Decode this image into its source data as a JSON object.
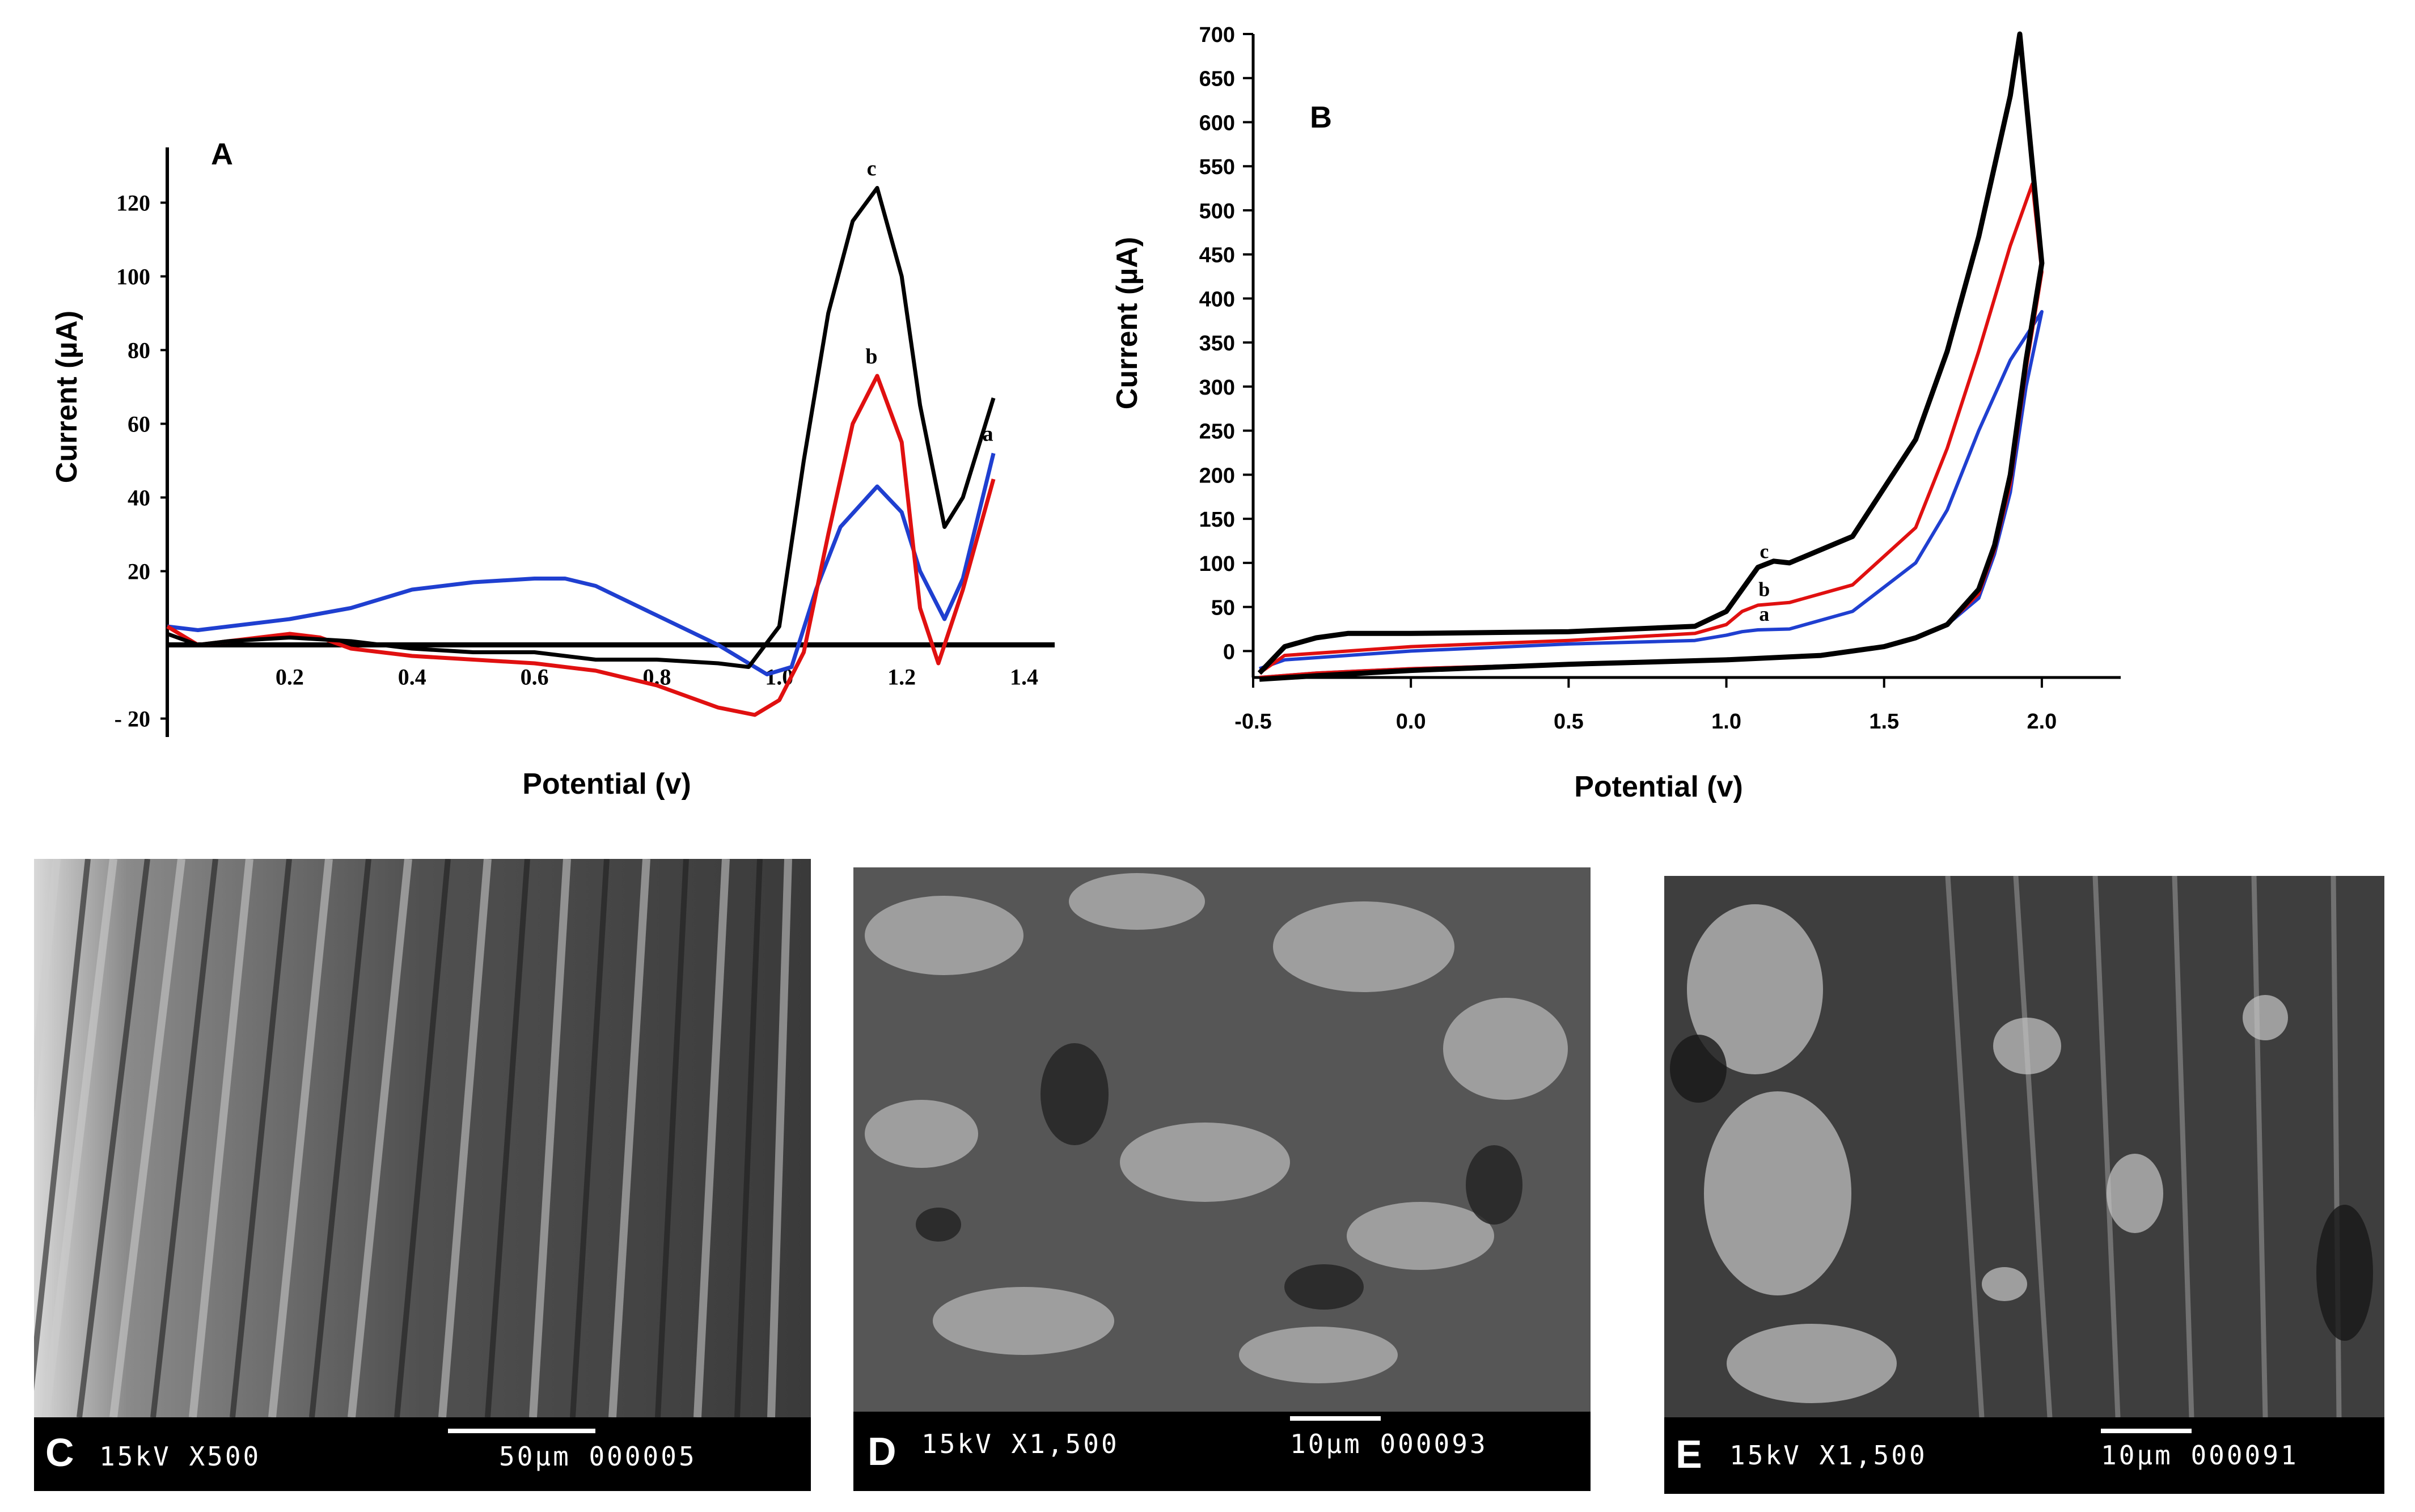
{
  "chart_data": [
    {
      "type": "line",
      "panel_label": "A",
      "xlabel": "Potential (v)",
      "ylabel": "Current (µA)",
      "xlim": [
        0,
        1.45
      ],
      "ylim": [
        -25,
        135
      ],
      "x_ticks": [
        "0.2",
        "0.4",
        "0.6",
        "0.8",
        "1.0",
        "1.2",
        "1.4"
      ],
      "y_ticks": [
        "120",
        "100",
        "80",
        "60",
        "40",
        "20",
        "- 20"
      ],
      "series": [
        {
          "name": "a",
          "color": "#1f3fd0",
          "x": [
            0.0,
            0.05,
            0.1,
            0.2,
            0.3,
            0.4,
            0.5,
            0.6,
            0.65,
            0.7,
            0.8,
            0.9,
            0.98,
            1.02,
            1.06,
            1.1,
            1.16,
            1.2,
            1.23,
            1.27,
            1.3,
            1.35
          ],
          "y": [
            5,
            4,
            5,
            7,
            10,
            15,
            17,
            18,
            18,
            16,
            8,
            0,
            -8,
            -6,
            15,
            32,
            43,
            36,
            20,
            7,
            18,
            52
          ]
        },
        {
          "name": "b",
          "color": "#e01010",
          "x": [
            0.0,
            0.05,
            0.1,
            0.2,
            0.25,
            0.3,
            0.4,
            0.5,
            0.6,
            0.7,
            0.8,
            0.9,
            0.96,
            1.0,
            1.04,
            1.08,
            1.12,
            1.16,
            1.2,
            1.23,
            1.26,
            1.3,
            1.35
          ],
          "y": [
            5,
            0,
            1,
            3,
            2,
            -1,
            -3,
            -4,
            -5,
            -7,
            -11,
            -17,
            -19,
            -15,
            -2,
            30,
            60,
            73,
            55,
            10,
            -5,
            15,
            45
          ]
        },
        {
          "name": "c",
          "color": "#000000",
          "x": [
            0.0,
            0.05,
            0.1,
            0.2,
            0.3,
            0.4,
            0.5,
            0.6,
            0.7,
            0.8,
            0.9,
            0.95,
            1.0,
            1.04,
            1.08,
            1.12,
            1.16,
            1.2,
            1.23,
            1.27,
            1.3,
            1.35
          ],
          "y": [
            3,
            0,
            1,
            2,
            1,
            -1,
            -2,
            -2,
            -4,
            -4,
            -5,
            -6,
            5,
            50,
            90,
            115,
            124,
            100,
            65,
            32,
            40,
            67
          ]
        }
      ]
    },
    {
      "type": "line",
      "panel_label": "B",
      "xlabel": "Potential (v)",
      "ylabel": "Current (µA)",
      "xlim": [
        -0.5,
        2.25
      ],
      "ylim": [
        -30,
        700
      ],
      "x_ticks": [
        "-0.5",
        "0.0",
        "0.5",
        "1.0",
        "1.5",
        "2.0"
      ],
      "y_ticks": [
        "700",
        "650",
        "600",
        "550",
        "500",
        "450",
        "400",
        "350",
        "300",
        "250",
        "200",
        "150",
        "100",
        "50",
        "0"
      ],
      "series": [
        {
          "name": "a",
          "color": "#1f3fd0",
          "forward": {
            "x": [
              -0.48,
              -0.4,
              -0.2,
              0.0,
              0.5,
              0.9,
              1.0,
              1.05,
              1.1,
              1.2,
              1.4,
              1.6,
              1.7,
              1.8,
              1.9,
              2.0
            ],
            "y": [
              -20,
              -10,
              -5,
              0,
              8,
              12,
              18,
              22,
              24,
              25,
              45,
              100,
              160,
              250,
              330,
              385
            ]
          },
          "reverse": {
            "x": [
              2.0,
              1.95,
              1.9,
              1.85,
              1.8,
              1.7,
              1.6,
              1.5,
              1.3,
              1.0,
              0.5,
              0.0,
              -0.3,
              -0.48
            ],
            "y": [
              385,
              300,
              180,
              110,
              60,
              30,
              15,
              5,
              -5,
              -10,
              -15,
              -20,
              -25,
              -30
            ]
          }
        },
        {
          "name": "b",
          "color": "#e01010",
          "forward": {
            "x": [
              -0.48,
              -0.4,
              -0.2,
              0.0,
              0.5,
              0.9,
              1.0,
              1.05,
              1.1,
              1.2,
              1.4,
              1.6,
              1.7,
              1.8,
              1.9,
              1.97,
              2.0
            ],
            "y": [
              -25,
              -5,
              0,
              5,
              12,
              20,
              30,
              45,
              52,
              55,
              75,
              140,
              230,
              340,
              460,
              530,
              430
            ]
          },
          "reverse": {
            "x": [
              2.0,
              1.95,
              1.9,
              1.85,
              1.8,
              1.7,
              1.6,
              1.5,
              1.3,
              1.0,
              0.5,
              0.0,
              -0.3,
              -0.48
            ],
            "y": [
              430,
              320,
              190,
              115,
              65,
              30,
              15,
              5,
              -5,
              -10,
              -15,
              -20,
              -25,
              -30
            ]
          }
        },
        {
          "name": "c",
          "color": "#000000",
          "forward": {
            "x": [
              -0.48,
              -0.4,
              -0.3,
              -0.2,
              0.0,
              0.5,
              0.9,
              1.0,
              1.05,
              1.1,
              1.15,
              1.2,
              1.4,
              1.6,
              1.7,
              1.8,
              1.9,
              1.93,
              2.0
            ],
            "y": [
              -25,
              5,
              15,
              20,
              20,
              22,
              28,
              45,
              70,
              95,
              102,
              100,
              130,
              240,
              340,
              470,
              630,
              700,
              440
            ]
          },
          "reverse": {
            "x": [
              2.0,
              1.95,
              1.9,
              1.85,
              1.8,
              1.7,
              1.6,
              1.5,
              1.3,
              1.0,
              0.5,
              0.0,
              -0.3,
              -0.48
            ],
            "y": [
              440,
              330,
              200,
              120,
              70,
              30,
              15,
              5,
              -5,
              -10,
              -15,
              -22,
              -28,
              -32
            ]
          }
        }
      ]
    }
  ],
  "sem_images": [
    {
      "label": "C",
      "info": "15kV X500",
      "scale": "50µm 000005"
    },
    {
      "label": "D",
      "info": "15kV X1,500",
      "scale": "10µm 000093"
    },
    {
      "label": "E",
      "info": "15kV X1,500",
      "scale": "10µm 000091"
    }
  ]
}
